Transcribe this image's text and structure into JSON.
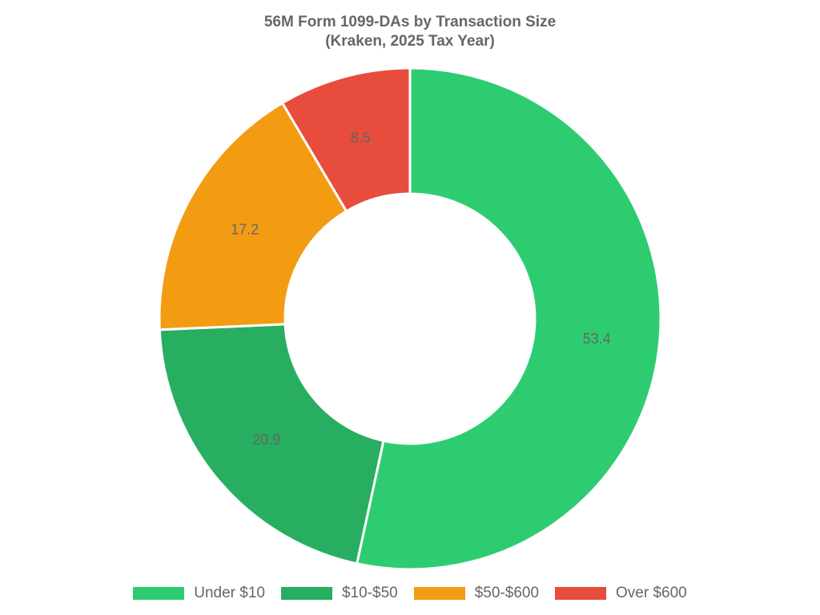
{
  "title": {
    "line1": "56M Form 1099-DAs by Transaction Size",
    "line2": "(Kraken, 2025 Tax Year)"
  },
  "legend": [
    {
      "label": "Under $10",
      "color": "#2ecc71"
    },
    {
      "label": "$10-$50",
      "color": "#27ae60"
    },
    {
      "label": "$50-$600",
      "color": "#f39c12"
    },
    {
      "label": "Over $600",
      "color": "#e74c3c"
    }
  ],
  "chart_data": {
    "type": "pie",
    "variant": "doughnut",
    "title": "56M Form 1099-DAs by Transaction Size (Kraken, 2025 Tax Year)",
    "categories": [
      "Under $10",
      "$10-$50",
      "$50-$600",
      "Over $600"
    ],
    "values": [
      53.4,
      20.9,
      17.2,
      8.5
    ],
    "colors": [
      "#2ecc71",
      "#27ae60",
      "#f39c12",
      "#e74c3c"
    ],
    "data_labels": [
      "53.4",
      "20.9",
      "17.2",
      "8.5"
    ],
    "legend_position": "bottom",
    "start_angle_deg": 0,
    "direction": "clockwise"
  }
}
